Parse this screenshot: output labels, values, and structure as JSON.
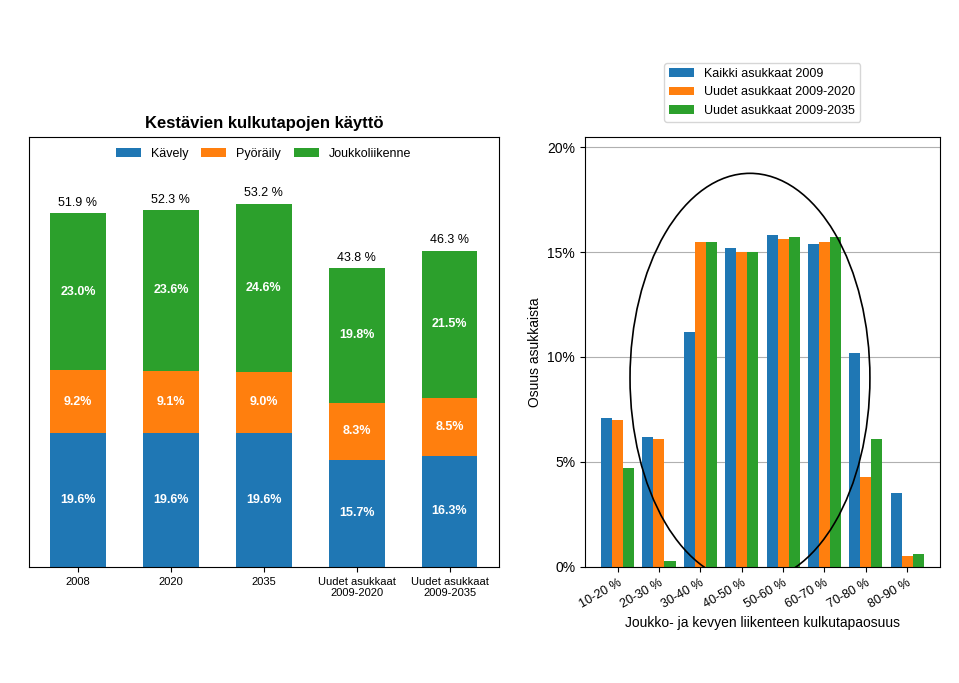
{
  "chart_data": [
    {
      "type": "bar",
      "title": "Kestävien kulkutapojen käyttö",
      "stacked": true,
      "data_labels": true,
      "categories": [
        "2008",
        "2020",
        "2035",
        "Uudet asukkaat\n2009-2020",
        "Uudet asukkaat\n2009-2035"
      ],
      "series": [
        {
          "name": "Kävely",
          "values": [
            19.6,
            19.6,
            19.6,
            15.7,
            16.3
          ],
          "value_labels": [
            "19.6%",
            "19.6%",
            "19.6%",
            "15.7%",
            "16.3%"
          ]
        },
        {
          "name": "Pyöräily",
          "values": [
            9.2,
            9.1,
            9.0,
            8.3,
            8.5
          ],
          "value_labels": [
            "9.2%",
            "9.1%",
            "9.0%",
            "8.3%",
            "8.5%"
          ]
        },
        {
          "name": "Joukkoliikenne",
          "values": [
            23.0,
            23.6,
            24.6,
            19.8,
            21.5
          ],
          "value_labels": [
            "23.0%",
            "23.6%",
            "24.6%",
            "19.8%",
            "21.5%"
          ]
        }
      ],
      "totals": [
        51.9,
        52.3,
        53.2,
        43.8,
        46.3
      ],
      "total_labels": [
        "51.9 %",
        "52.3 %",
        "53.2 %",
        "43.8 %",
        "46.3 %"
      ],
      "ylim": [
        0,
        63
      ],
      "tick_labels": "x",
      "legend": "upper center"
    },
    {
      "type": "bar",
      "stacked": false,
      "xlabel": "Joukko- ja kevyen liikenteen kulkutapaosuus",
      "ylabel": "Osuus asukkaista",
      "categories": [
        "10-20 %",
        "20-30 %",
        "30-40 %",
        "40-50 %",
        "50-60 %",
        "60-70 %",
        "70-80 %",
        "80-90 %"
      ],
      "series": [
        {
          "name": "Kaikki asukkaat 2009",
          "values": [
            7.1,
            6.2,
            11.2,
            15.2,
            15.8,
            15.4,
            10.2,
            3.5
          ]
        },
        {
          "name": "Uudet asukkaat 2009-2020",
          "values": [
            7.0,
            6.1,
            15.5,
            15.0,
            15.6,
            15.5,
            4.3,
            0.5
          ]
        },
        {
          "name": "Uudet asukkaat 2009-2035",
          "values": [
            4.7,
            0.3,
            15.5,
            15.0,
            15.7,
            15.7,
            6.1,
            0.6
          ]
        }
      ],
      "ylim": [
        0,
        20.5
      ],
      "yticks": [
        {
          "value": 0,
          "label": "0%"
        },
        {
          "value": 5,
          "label": "5%"
        },
        {
          "value": 10,
          "label": "10%"
        },
        {
          "value": 15,
          "label": "15%"
        },
        {
          "value": 20,
          "label": "20%"
        }
      ],
      "grid": "y",
      "legend": "lower center",
      "shapes": [
        {
          "type": "ellipse",
          "x": 3.2,
          "y": 9.0,
          "width": 5.8,
          "height": 19.5
        }
      ]
    }
  ]
}
